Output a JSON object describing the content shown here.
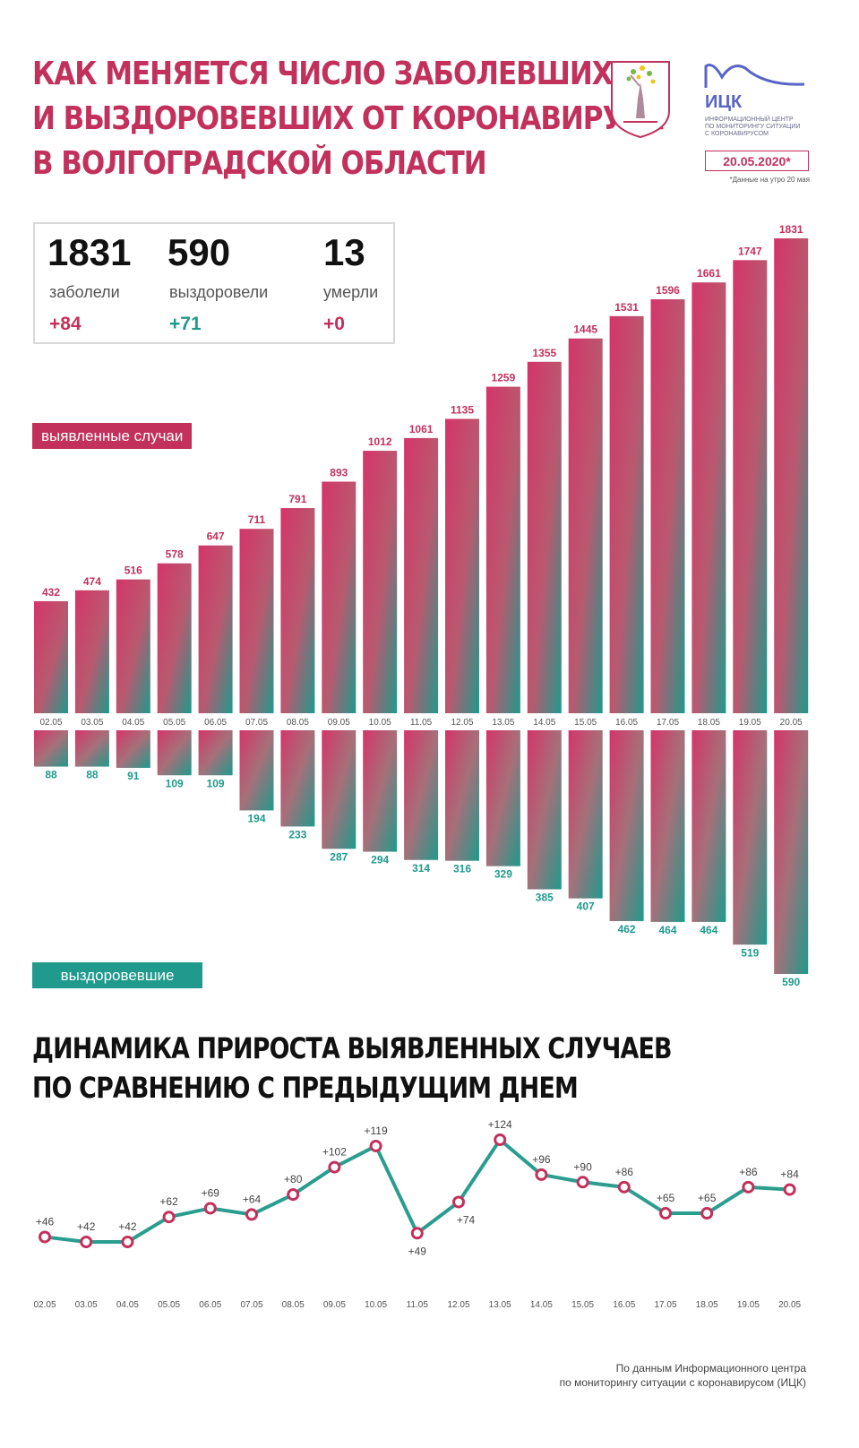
{
  "header": {
    "title_lines": [
      "КАК МЕНЯЕТСЯ ЧИСЛО ЗАБОЛЕВШИХ",
      "И ВЫЗДОРОВЕВШИХ ОТ КОРОНАВИРУСА",
      "В ВОЛГОГРАДСКОЙ ОБЛАСТИ"
    ],
    "logo_name": "ИЦК",
    "logo_sub": [
      "ИНФОРМАЦИОННЫЙ ЦЕНТР",
      "ПО МОНИТОРИНГУ СИТУАЦИИ",
      "С КОРОНАВИРУСОМ"
    ],
    "date": "20.05.2020*",
    "date_note": "*Данные на утро 20 мая",
    "emblem_icon": "volgograd-coat-of-arms-icon",
    "logo_icon": "ick-logo-icon"
  },
  "stats": [
    {
      "value": "1831",
      "label": "заболели",
      "delta": "+84"
    },
    {
      "value": "590",
      "label": "выздоровели",
      "delta": "+71"
    },
    {
      "value": "13",
      "label": "умерли",
      "delta": "+0"
    }
  ],
  "legend": {
    "detected": "выявленные случаи",
    "recovered": "выздоровевшие"
  },
  "colors": {
    "accent": "#c2315c",
    "teal": "#1f9a8c",
    "line": "#2a9d8f"
  },
  "chart_data": [
    {
      "type": "bar",
      "categories": [
        "02.05",
        "03.05",
        "04.05",
        "05.05",
        "06.05",
        "07.05",
        "08.05",
        "09.05",
        "10.05",
        "11.05",
        "12.05",
        "13.05",
        "14.05",
        "15.05",
        "16.05",
        "17.05",
        "18.05",
        "19.05",
        "20.05"
      ],
      "series": [
        {
          "name": "выявленные случаи",
          "values": [
            432,
            474,
            516,
            578,
            647,
            711,
            791,
            893,
            1012,
            1061,
            1135,
            1259,
            1355,
            1445,
            1531,
            1596,
            1661,
            1747,
            1831
          ]
        },
        {
          "name": "выздоровевшие",
          "values": [
            88,
            88,
            91,
            109,
            109,
            194,
            233,
            287,
            294,
            314,
            316,
            329,
            385,
            407,
            462,
            464,
            464,
            519,
            590
          ]
        }
      ],
      "title": "",
      "xlabel": "",
      "ylabel": ""
    },
    {
      "type": "line",
      "title": "ДИНАМИКА ПРИРОСТА ВЫЯВЛЕННЫХ СЛУЧАЕВ ПО СРАВНЕНИЮ С ПРЕДЫДУЩИМ ДНЕМ",
      "title_lines": [
        "ДИНАМИКА ПРИРОСТА ВЫЯВЛЕННЫХ СЛУЧАЕВ",
        "ПО СРАВНЕНИЮ С ПРЕДЫДУЩИМ ДНЕМ"
      ],
      "categories": [
        "02.05",
        "03.05",
        "04.05",
        "05.05",
        "06.05",
        "07.05",
        "08.05",
        "09.05",
        "10.05",
        "11.05",
        "12.05",
        "13.05",
        "14.05",
        "15.05",
        "16.05",
        "17.05",
        "18.05",
        "19.05",
        "20.05"
      ],
      "values": [
        46,
        42,
        42,
        62,
        69,
        64,
        80,
        102,
        119,
        49,
        74,
        124,
        96,
        90,
        86,
        65,
        65,
        86,
        84
      ],
      "labels": [
        "+46",
        "+42",
        "+42",
        "+62",
        "+69",
        "+64",
        "+80",
        "+102",
        "+119",
        "+49",
        "+74",
        "+124",
        "+96",
        "+90",
        "+86",
        "+65",
        "+65",
        "+86",
        "+84"
      ],
      "xlabel": "",
      "ylabel": ""
    }
  ],
  "source_lines": [
    "По данным Информационного центра",
    "по мониторингу ситуации с коронавирусом (ИЦК)"
  ]
}
